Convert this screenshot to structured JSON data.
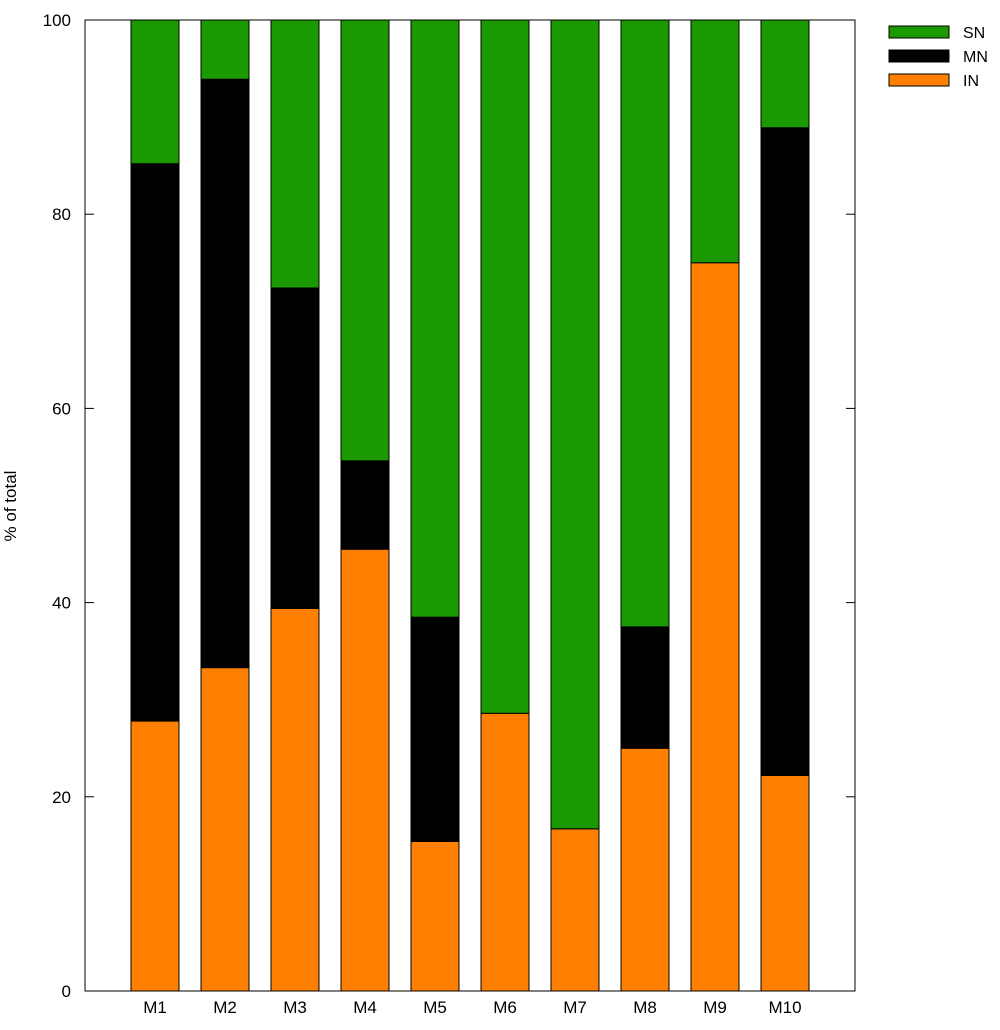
{
  "chart_data": {
    "type": "bar",
    "stacked": true,
    "title": "",
    "xlabel": "",
    "ylabel": "% of total",
    "ylim": [
      0,
      100
    ],
    "yticks": [
      "0",
      "20",
      "40",
      "60",
      "80",
      "100"
    ],
    "categories": [
      "M1",
      "M2",
      "M3",
      "M4",
      "M5",
      "M6",
      "M7",
      "M8",
      "M9",
      "M10"
    ],
    "series": [
      {
        "name": "IN",
        "color": "#ff8000",
        "values": [
          27.8,
          33.3,
          39.4,
          45.5,
          15.4,
          28.6,
          16.7,
          25.0,
          75.0,
          22.2
        ]
      },
      {
        "name": "MN",
        "color": "#000000",
        "values": [
          57.4,
          60.6,
          33.0,
          9.1,
          23.1,
          0,
          0,
          12.5,
          0,
          66.7
        ]
      },
      {
        "name": "SN",
        "color": "#1a9900",
        "values": [
          14.8,
          6.1,
          27.6,
          45.4,
          61.5,
          71.4,
          83.3,
          62.5,
          25.0,
          11.1
        ]
      }
    ],
    "legend": {
      "position": "top-right",
      "order": [
        "SN",
        "MN",
        "IN"
      ]
    },
    "grid": false
  }
}
